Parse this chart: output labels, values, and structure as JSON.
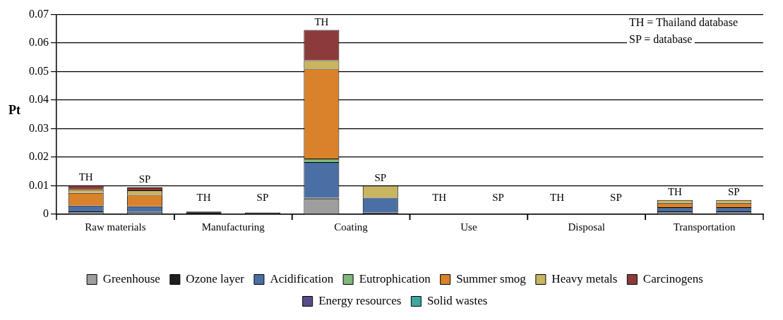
{
  "chart_data": {
    "type": "bar",
    "stacked": true,
    "ylabel": "Pt",
    "categories": [
      "TH",
      "SP",
      "TH",
      "SP",
      "TH",
      "SP",
      "TH",
      "SP",
      "TH",
      "SP",
      "TH",
      "SP"
    ],
    "annotations": [
      "TH = Thailand database",
      "SP = database",
      "Raw materials",
      "Manufacturing",
      "Coating",
      "Use",
      "Disposal",
      "Transportation"
    ],
    "series": [
      {
        "name": "Greenhouse",
        "color": "#9e9e9e",
        "values": [
          0.001,
          0.0008,
          0,
          0,
          0.0055,
          0,
          0,
          0,
          0,
          0,
          0.001,
          0.001
        ]
      },
      {
        "name": "Ozone layer",
        "color": "#1f1f1f",
        "values": [
          0,
          0,
          0.0009,
          0.0006,
          0.0003,
          0.0006,
          0,
          0,
          0,
          0,
          0,
          0
        ]
      },
      {
        "name": "Acidification",
        "color": "#4a6fa5",
        "values": [
          0.002,
          0.002,
          0,
          0,
          0.0125,
          0.0052,
          0,
          0,
          0,
          0,
          0.0015,
          0.0015
        ]
      },
      {
        "name": "Eutrophication",
        "color": "#7fb77e",
        "values": [
          0,
          0,
          0,
          0,
          0.0012,
          0,
          0,
          0,
          0,
          0,
          0,
          0
        ]
      },
      {
        "name": "Summer smog",
        "color": "#d9822b",
        "values": [
          0.0045,
          0.004,
          0,
          0,
          0.0315,
          0,
          0,
          0,
          0,
          0,
          0.0015,
          0.0015
        ]
      },
      {
        "name": "Heavy metals",
        "color": "#c8b560",
        "values": [
          0.0012,
          0.0016,
          0,
          0,
          0.003,
          0.0042,
          0,
          0,
          0,
          0,
          0.001,
          0.001
        ]
      },
      {
        "name": "Carcinogens",
        "color": "#8c3b3b",
        "values": [
          0.0015,
          0.001,
          0,
          0,
          0.0106,
          0,
          0,
          0,
          0,
          0,
          0,
          0
        ]
      },
      {
        "name": "Energy resources",
        "color": "#5b4a8a",
        "values": [
          0,
          0,
          0,
          0,
          0,
          0,
          0,
          0,
          0,
          0,
          0,
          0
        ]
      },
      {
        "name": "Solid wastes",
        "color": "#3fa7a0",
        "values": [
          0,
          0,
          0,
          0,
          0,
          0,
          0,
          0,
          0,
          0,
          0,
          0
        ]
      }
    ],
    "ylim": [
      0,
      0.07
    ],
    "yticks": [
      0,
      0.01,
      0.02,
      0.03,
      0.04,
      0.05,
      0.06,
      0.07
    ],
    "grid": "y",
    "legend": "bottom"
  }
}
